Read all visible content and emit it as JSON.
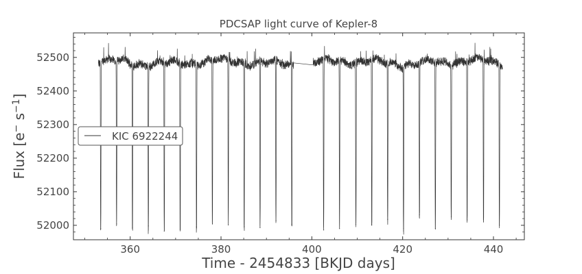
{
  "chart_data": {
    "type": "line",
    "title": "PDCSAP light curve of Kepler-8",
    "xlabel": "Time - 2454833 [BKJD days]",
    "ylabel_main": "Flux [e",
    "ylabel_sup1": "−",
    "ylabel_mid": " s",
    "ylabel_sup2": "−1",
    "ylabel_end": "]",
    "xlim": [
      347.5,
      446.8
    ],
    "ylim": [
      51957,
      52573
    ],
    "xticks": [
      360,
      380,
      400,
      420,
      440
    ],
    "xtick_labels": [
      "360",
      "380",
      "400",
      "420",
      "440"
    ],
    "yticks": [
      52000,
      52100,
      52200,
      52300,
      52400,
      52500
    ],
    "ytick_labels": [
      "52000",
      "52100",
      "52200",
      "52300",
      "52400",
      "52500"
    ],
    "grid": false,
    "legend_position": "center-left",
    "series": [
      {
        "name": "KIC 6922244",
        "color": "#333333",
        "baseline": 52485,
        "segments": [
          [
            353.0,
            396.0
          ],
          [
            400.3,
            442.0
          ]
        ],
        "transits": [
          {
            "t": 353.5,
            "min": 51990
          },
          {
            "t": 357.0,
            "min": 52004
          },
          {
            "t": 360.5,
            "min": 51993
          },
          {
            "t": 364.0,
            "min": 51998
          },
          {
            "t": 367.5,
            "min": 51983
          },
          {
            "t": 371.0,
            "min": 51987
          },
          {
            "t": 374.6,
            "min": 51995
          },
          {
            "t": 378.1,
            "min": 52004
          },
          {
            "t": 381.6,
            "min": 52001
          },
          {
            "t": 385.1,
            "min": 51996
          },
          {
            "t": 388.6,
            "min": 51993
          },
          {
            "t": 392.1,
            "min": 52014
          },
          {
            "t": 395.6,
            "min": 52003
          },
          {
            "t": 402.6,
            "min": 51986
          },
          {
            "t": 406.1,
            "min": 51990
          },
          {
            "t": 409.7,
            "min": 52002
          },
          {
            "t": 413.2,
            "min": 52001
          },
          {
            "t": 416.7,
            "min": 52018
          },
          {
            "t": 420.2,
            "min": 51991
          },
          {
            "t": 423.7,
            "min": 52031
          },
          {
            "t": 427.2,
            "min": 51990
          },
          {
            "t": 430.7,
            "min": 52025
          },
          {
            "t": 434.2,
            "min": 52016
          },
          {
            "t": 437.8,
            "min": 52010
          },
          {
            "t": 441.3,
            "min": 52000
          }
        ]
      }
    ]
  }
}
